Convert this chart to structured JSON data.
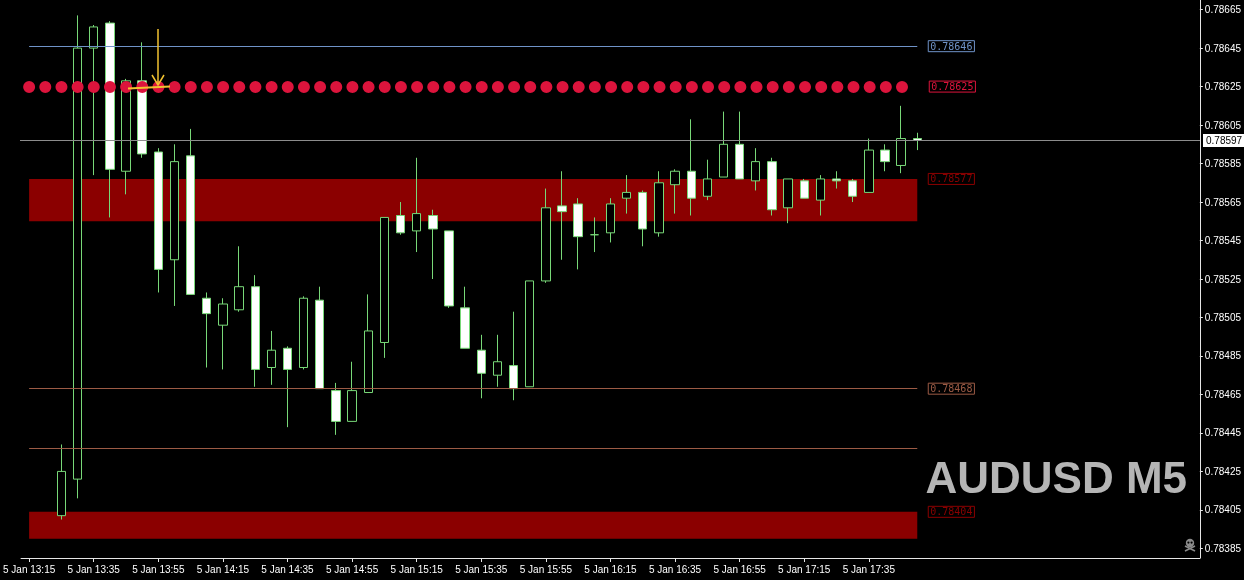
{
  "chart_data": {
    "type": "candlestick",
    "title": "AUDUSD M5",
    "color": "#78d878",
    "categories": [
      "5 Jan 13:15",
      null,
      null,
      null,
      "5 Jan 13:35",
      null,
      null,
      null,
      "5 Jan 13:55",
      null,
      null,
      null,
      "5 Jan 14:15",
      null,
      null,
      null,
      "5 Jan 14:35",
      null,
      null,
      null,
      "5 Jan 14:55",
      null,
      null,
      null,
      "5 Jan 15:15",
      null,
      null,
      null,
      "5 Jan 15:35",
      null,
      null,
      null,
      "5 Jan 15:55",
      null,
      null,
      null,
      "5 Jan 16:15",
      null,
      null,
      null,
      "5 Jan 16:35",
      null,
      null,
      null,
      "5 Jan 16:55",
      null,
      null,
      null,
      "5 Jan 17:15",
      null,
      null,
      null,
      "5 Jan 17:35",
      null,
      null,
      null,
      null,
      null,
      null,
      null,
      null,
      null,
      null,
      null,
      null,
      null,
      null,
      null,
      null,
      null,
      null,
      null,
      null
    ],
    "ohlc": [
      null,
      null,
      [
        0.78402,
        0.78439,
        0.784,
        0.78425
      ],
      [
        0.78421,
        0.78662,
        0.78411,
        0.78645
      ],
      [
        0.78645,
        0.78657,
        0.78579,
        0.78656
      ],
      [
        0.78658,
        0.78659,
        0.78557,
        0.78582
      ],
      [
        0.78581,
        0.78629,
        0.78569,
        0.78628
      ],
      [
        0.78628,
        0.78648,
        0.78588,
        0.7859
      ],
      [
        0.78591,
        0.78593,
        0.78518,
        0.7853
      ],
      [
        0.78535,
        0.78595,
        0.78511,
        0.78586
      ],
      [
        0.78589,
        0.78603,
        0.78517,
        0.78517
      ],
      [
        0.78515,
        0.78518,
        0.78479,
        0.78507
      ],
      [
        0.78501,
        0.78515,
        0.78478,
        0.78512
      ],
      [
        0.78509,
        0.78542,
        0.78508,
        0.78521
      ],
      [
        0.78521,
        0.78527,
        0.78469,
        0.78478
      ],
      [
        0.78479,
        0.78498,
        0.7847,
        0.78488
      ],
      [
        0.78489,
        0.7849,
        0.78448,
        0.78478
      ],
      [
        0.78479,
        0.78516,
        0.78478,
        0.78515
      ],
      [
        0.78514,
        0.78521,
        0.78468,
        0.78468
      ],
      [
        0.78467,
        0.78471,
        0.78444,
        0.78451
      ],
      [
        0.78451,
        0.78482,
        0.78451,
        0.78467
      ],
      [
        0.78466,
        0.78517,
        0.78466,
        0.78498
      ],
      [
        0.78492,
        0.78557,
        0.78484,
        0.78557
      ],
      [
        0.78558,
        0.78565,
        0.78548,
        0.78549
      ],
      [
        0.7855,
        0.78588,
        0.78539,
        0.78559
      ],
      [
        0.78558,
        0.78561,
        0.78525,
        0.78551
      ],
      [
        0.7855,
        0.7855,
        0.7851,
        0.78511
      ],
      [
        0.7851,
        0.78521,
        0.78489,
        0.78489
      ],
      [
        0.78488,
        0.78496,
        0.78463,
        0.78476
      ],
      [
        0.78475,
        0.78496,
        0.78469,
        0.78482
      ],
      [
        0.7848,
        0.78508,
        0.78462,
        0.78468
      ],
      [
        0.78469,
        0.78524,
        0.78469,
        0.78524
      ],
      [
        0.78524,
        0.78572,
        0.78523,
        0.78562
      ],
      [
        0.78563,
        0.78581,
        0.78535,
        0.7856
      ],
      [
        0.78564,
        0.78567,
        0.7853,
        0.78547
      ],
      [
        0.78548,
        0.78557,
        0.78539,
        0.78548
      ],
      [
        0.78549,
        0.78567,
        0.78544,
        0.78564
      ],
      [
        0.78567,
        0.78579,
        0.78559,
        0.7857
      ],
      [
        0.7857,
        0.78571,
        0.78542,
        0.78551
      ],
      [
        0.78549,
        0.78581,
        0.78547,
        0.78575
      ],
      [
        0.78574,
        0.78582,
        0.78559,
        0.78581
      ],
      [
        0.78581,
        0.78608,
        0.78558,
        0.78567
      ],
      [
        0.78568,
        0.78587,
        0.78566,
        0.78577
      ],
      [
        0.78578,
        0.78612,
        0.78578,
        0.78595
      ],
      [
        0.78595,
        0.78612,
        0.78577,
        0.78577
      ],
      [
        0.78576,
        0.78593,
        0.78571,
        0.78586
      ],
      [
        0.78586,
        0.78588,
        0.78558,
        0.78561
      ],
      [
        0.78562,
        0.78577,
        0.78554,
        0.78577
      ],
      [
        0.78576,
        0.78577,
        0.78567,
        0.78567
      ],
      [
        0.78566,
        0.78579,
        0.78558,
        0.78577
      ],
      [
        0.78577,
        0.78581,
        0.78572,
        0.78576
      ],
      [
        0.78576,
        0.78577,
        0.78565,
        0.78568
      ],
      [
        0.7857,
        0.78598,
        0.7857,
        0.78592
      ],
      [
        0.78592,
        0.78595,
        0.78581,
        0.78586
      ],
      [
        0.78584,
        0.78615,
        0.7858,
        0.78598
      ],
      [
        0.78598,
        0.78601,
        0.78592,
        0.78597
      ],
      null,
      null,
      null,
      null,
      null,
      null,
      null,
      null,
      null,
      null,
      null,
      null,
      null,
      null,
      null,
      null,
      null
    ],
    "ylim": [
      0.7838,
      0.7867
    ],
    "yticks": [
      0.78385,
      0.78405,
      0.78425,
      0.78445,
      0.78465,
      0.78485,
      0.78505,
      0.78525,
      0.78545,
      0.78565,
      0.78585,
      0.78605,
      0.78625,
      0.78645,
      0.78665
    ],
    "ref_lines": [
      {
        "axis": "y",
        "value": 0.78646,
        "label": "0.78646",
        "color": "#6f93c8",
        "line_style": "solid"
      },
      {
        "axis": "y",
        "value": 0.78625,
        "label": "0.78625",
        "color": "#dc143c",
        "line_style": "dotted"
      },
      {
        "axis": "y",
        "value": 0.78597,
        "label": "0.78597",
        "color": "#8c8c8c"
      },
      {
        "axis": "y",
        "value": 0.78468,
        "label": "0.78468",
        "color": "#9c5b45",
        "line_style": "solid"
      },
      {
        "axis": "y",
        "value": 0.78437,
        "color": "#9c5b45",
        "line_style": "solid"
      }
    ],
    "bands": [
      {
        "axis": "y",
        "from": 0.78577,
        "to": 0.78555,
        "label": "0.78577",
        "color": "#8b0000"
      },
      {
        "axis": "y",
        "from": 0.78404,
        "to": 0.7839,
        "label": "0.78404",
        "color": "#8b0000"
      }
    ]
  }
}
